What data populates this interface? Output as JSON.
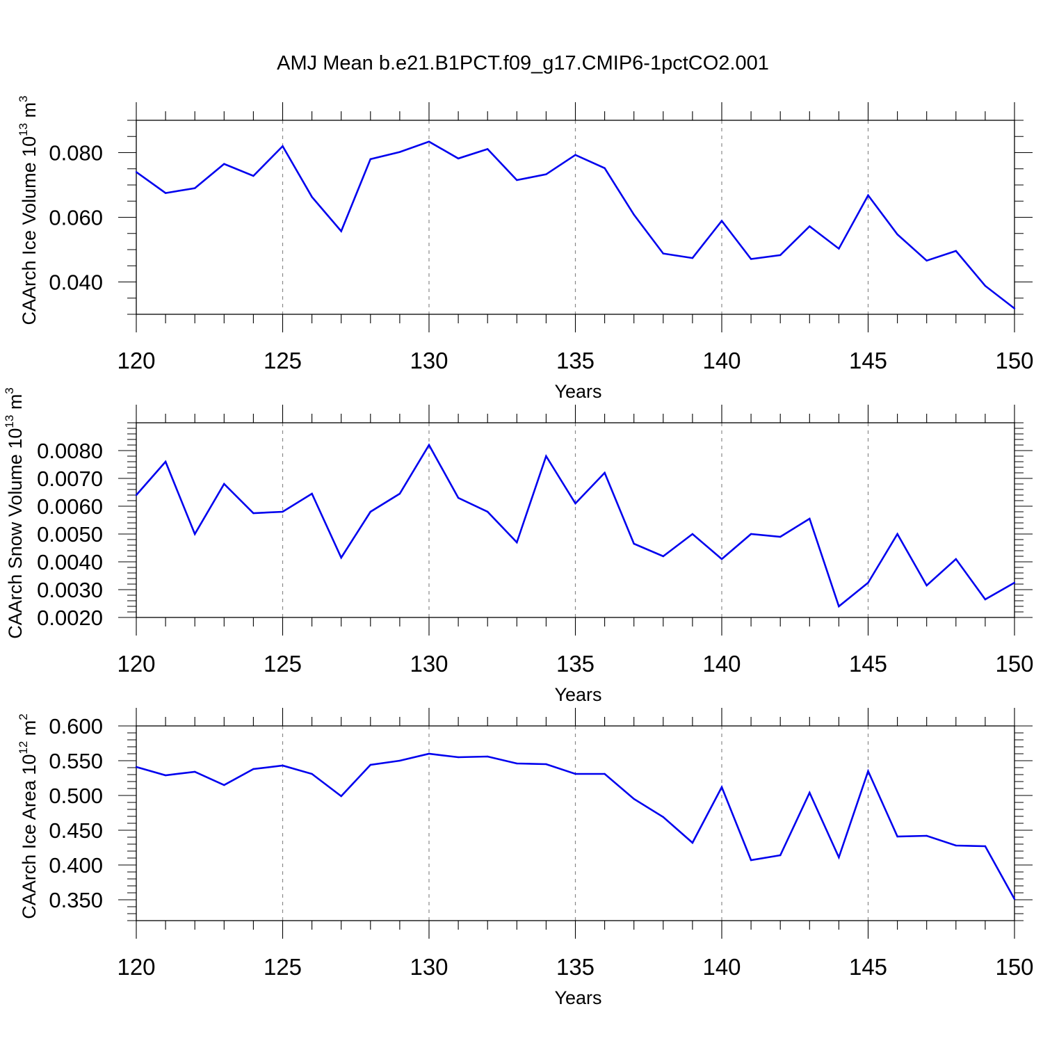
{
  "figure_title": "AMJ Mean b.e21.B1PCT.f09_g17.CMIP6-1pctCO2.001",
  "colors": {
    "line": "#0000ee",
    "axis": "#000000",
    "grid": "#888888"
  },
  "chart_data": [
    {
      "type": "line",
      "title": "AMJ Mean b.e21.B1PCT.f09_g17.CMIP6-1pctCO2.001",
      "xlabel": "Years",
      "ylabel": "CAArch Ice Volume 10",
      "ylabel_exp": "13",
      "ylabel_unit": " m",
      "ylabel_unit_exp": "3",
      "xlim": [
        120,
        150
      ],
      "ylim": [
        0.03,
        0.09
      ],
      "x_ticks": [
        120,
        125,
        130,
        135,
        140,
        145,
        150
      ],
      "x_tick_labels": [
        "120",
        "125",
        "130",
        "135",
        "140",
        "145",
        "150"
      ],
      "y_ticks": [
        0.04,
        0.06,
        0.08
      ],
      "y_tick_labels": [
        "0.040",
        "0.060",
        "0.080"
      ],
      "y_minor_step": 0.005,
      "x": [
        120,
        121,
        122,
        123,
        124,
        125,
        126,
        127,
        128,
        129,
        130,
        131,
        132,
        133,
        134,
        135,
        136,
        137,
        138,
        139,
        140,
        141,
        142,
        143,
        144,
        145,
        146,
        147,
        148,
        149,
        150
      ],
      "values": [
        0.074,
        0.0675,
        0.069,
        0.0765,
        0.0728,
        0.082,
        0.0663,
        0.0557,
        0.078,
        0.0802,
        0.0834,
        0.0782,
        0.0811,
        0.0715,
        0.0733,
        0.0793,
        0.0752,
        0.0608,
        0.0488,
        0.0474,
        0.0589,
        0.0471,
        0.0483,
        0.0572,
        0.0503,
        0.0668,
        0.0547,
        0.0466,
        0.0496,
        0.0388,
        0.0318
      ]
    },
    {
      "type": "line",
      "xlabel": "Years",
      "ylabel": "CAArch Snow Volume 10",
      "ylabel_exp": "13",
      "ylabel_unit": " m",
      "ylabel_unit_exp": "3",
      "xlim": [
        120,
        150
      ],
      "ylim": [
        0.002,
        0.009
      ],
      "x_ticks": [
        120,
        125,
        130,
        135,
        140,
        145,
        150
      ],
      "x_tick_labels": [
        "120",
        "125",
        "130",
        "135",
        "140",
        "145",
        "150"
      ],
      "y_ticks": [
        0.002,
        0.003,
        0.004,
        0.005,
        0.006,
        0.007,
        0.008
      ],
      "y_tick_labels": [
        "0.0020",
        "0.0030",
        "0.0040",
        "0.0050",
        "0.0060",
        "0.0070",
        "0.0080"
      ],
      "y_minor_step": 0.0002,
      "x": [
        120,
        121,
        122,
        123,
        124,
        125,
        126,
        127,
        128,
        129,
        130,
        131,
        132,
        133,
        134,
        135,
        136,
        137,
        138,
        139,
        140,
        141,
        142,
        143,
        144,
        145,
        146,
        147,
        148,
        149,
        150
      ],
      "values": [
        0.0064,
        0.0076,
        0.005,
        0.0068,
        0.00575,
        0.0058,
        0.00645,
        0.00415,
        0.0058,
        0.00645,
        0.0082,
        0.0063,
        0.0058,
        0.0047,
        0.0078,
        0.0061,
        0.0072,
        0.00465,
        0.0042,
        0.005,
        0.0041,
        0.005,
        0.0049,
        0.00555,
        0.0024,
        0.00325,
        0.005,
        0.00315,
        0.0041,
        0.00265,
        0.00325
      ]
    },
    {
      "type": "line",
      "xlabel": "Years",
      "ylabel": "CAArch Ice Area 10",
      "ylabel_exp": "12",
      "ylabel_unit": " m",
      "ylabel_unit_exp": "2",
      "xlim": [
        120,
        150
      ],
      "ylim": [
        0.32,
        0.6
      ],
      "x_ticks": [
        120,
        125,
        130,
        135,
        140,
        145,
        150
      ],
      "x_tick_labels": [
        "120",
        "125",
        "130",
        "135",
        "140",
        "145",
        "150"
      ],
      "y_ticks": [
        0.35,
        0.4,
        0.45,
        0.5,
        0.55,
        0.6
      ],
      "y_tick_labels": [
        "0.350",
        "0.400",
        "0.450",
        "0.500",
        "0.550",
        "0.600"
      ],
      "y_minor_step": 0.01,
      "x": [
        120,
        121,
        122,
        123,
        124,
        125,
        126,
        127,
        128,
        129,
        130,
        131,
        132,
        133,
        134,
        135,
        136,
        137,
        138,
        139,
        140,
        141,
        142,
        143,
        144,
        145,
        146,
        147,
        148,
        149,
        150
      ],
      "values": [
        0.541,
        0.529,
        0.534,
        0.515,
        0.538,
        0.543,
        0.531,
        0.499,
        0.544,
        0.55,
        0.56,
        0.555,
        0.556,
        0.546,
        0.545,
        0.531,
        0.531,
        0.495,
        0.469,
        0.432,
        0.512,
        0.407,
        0.414,
        0.504,
        0.411,
        0.535,
        0.441,
        0.442,
        0.428,
        0.427,
        0.351
      ]
    }
  ]
}
